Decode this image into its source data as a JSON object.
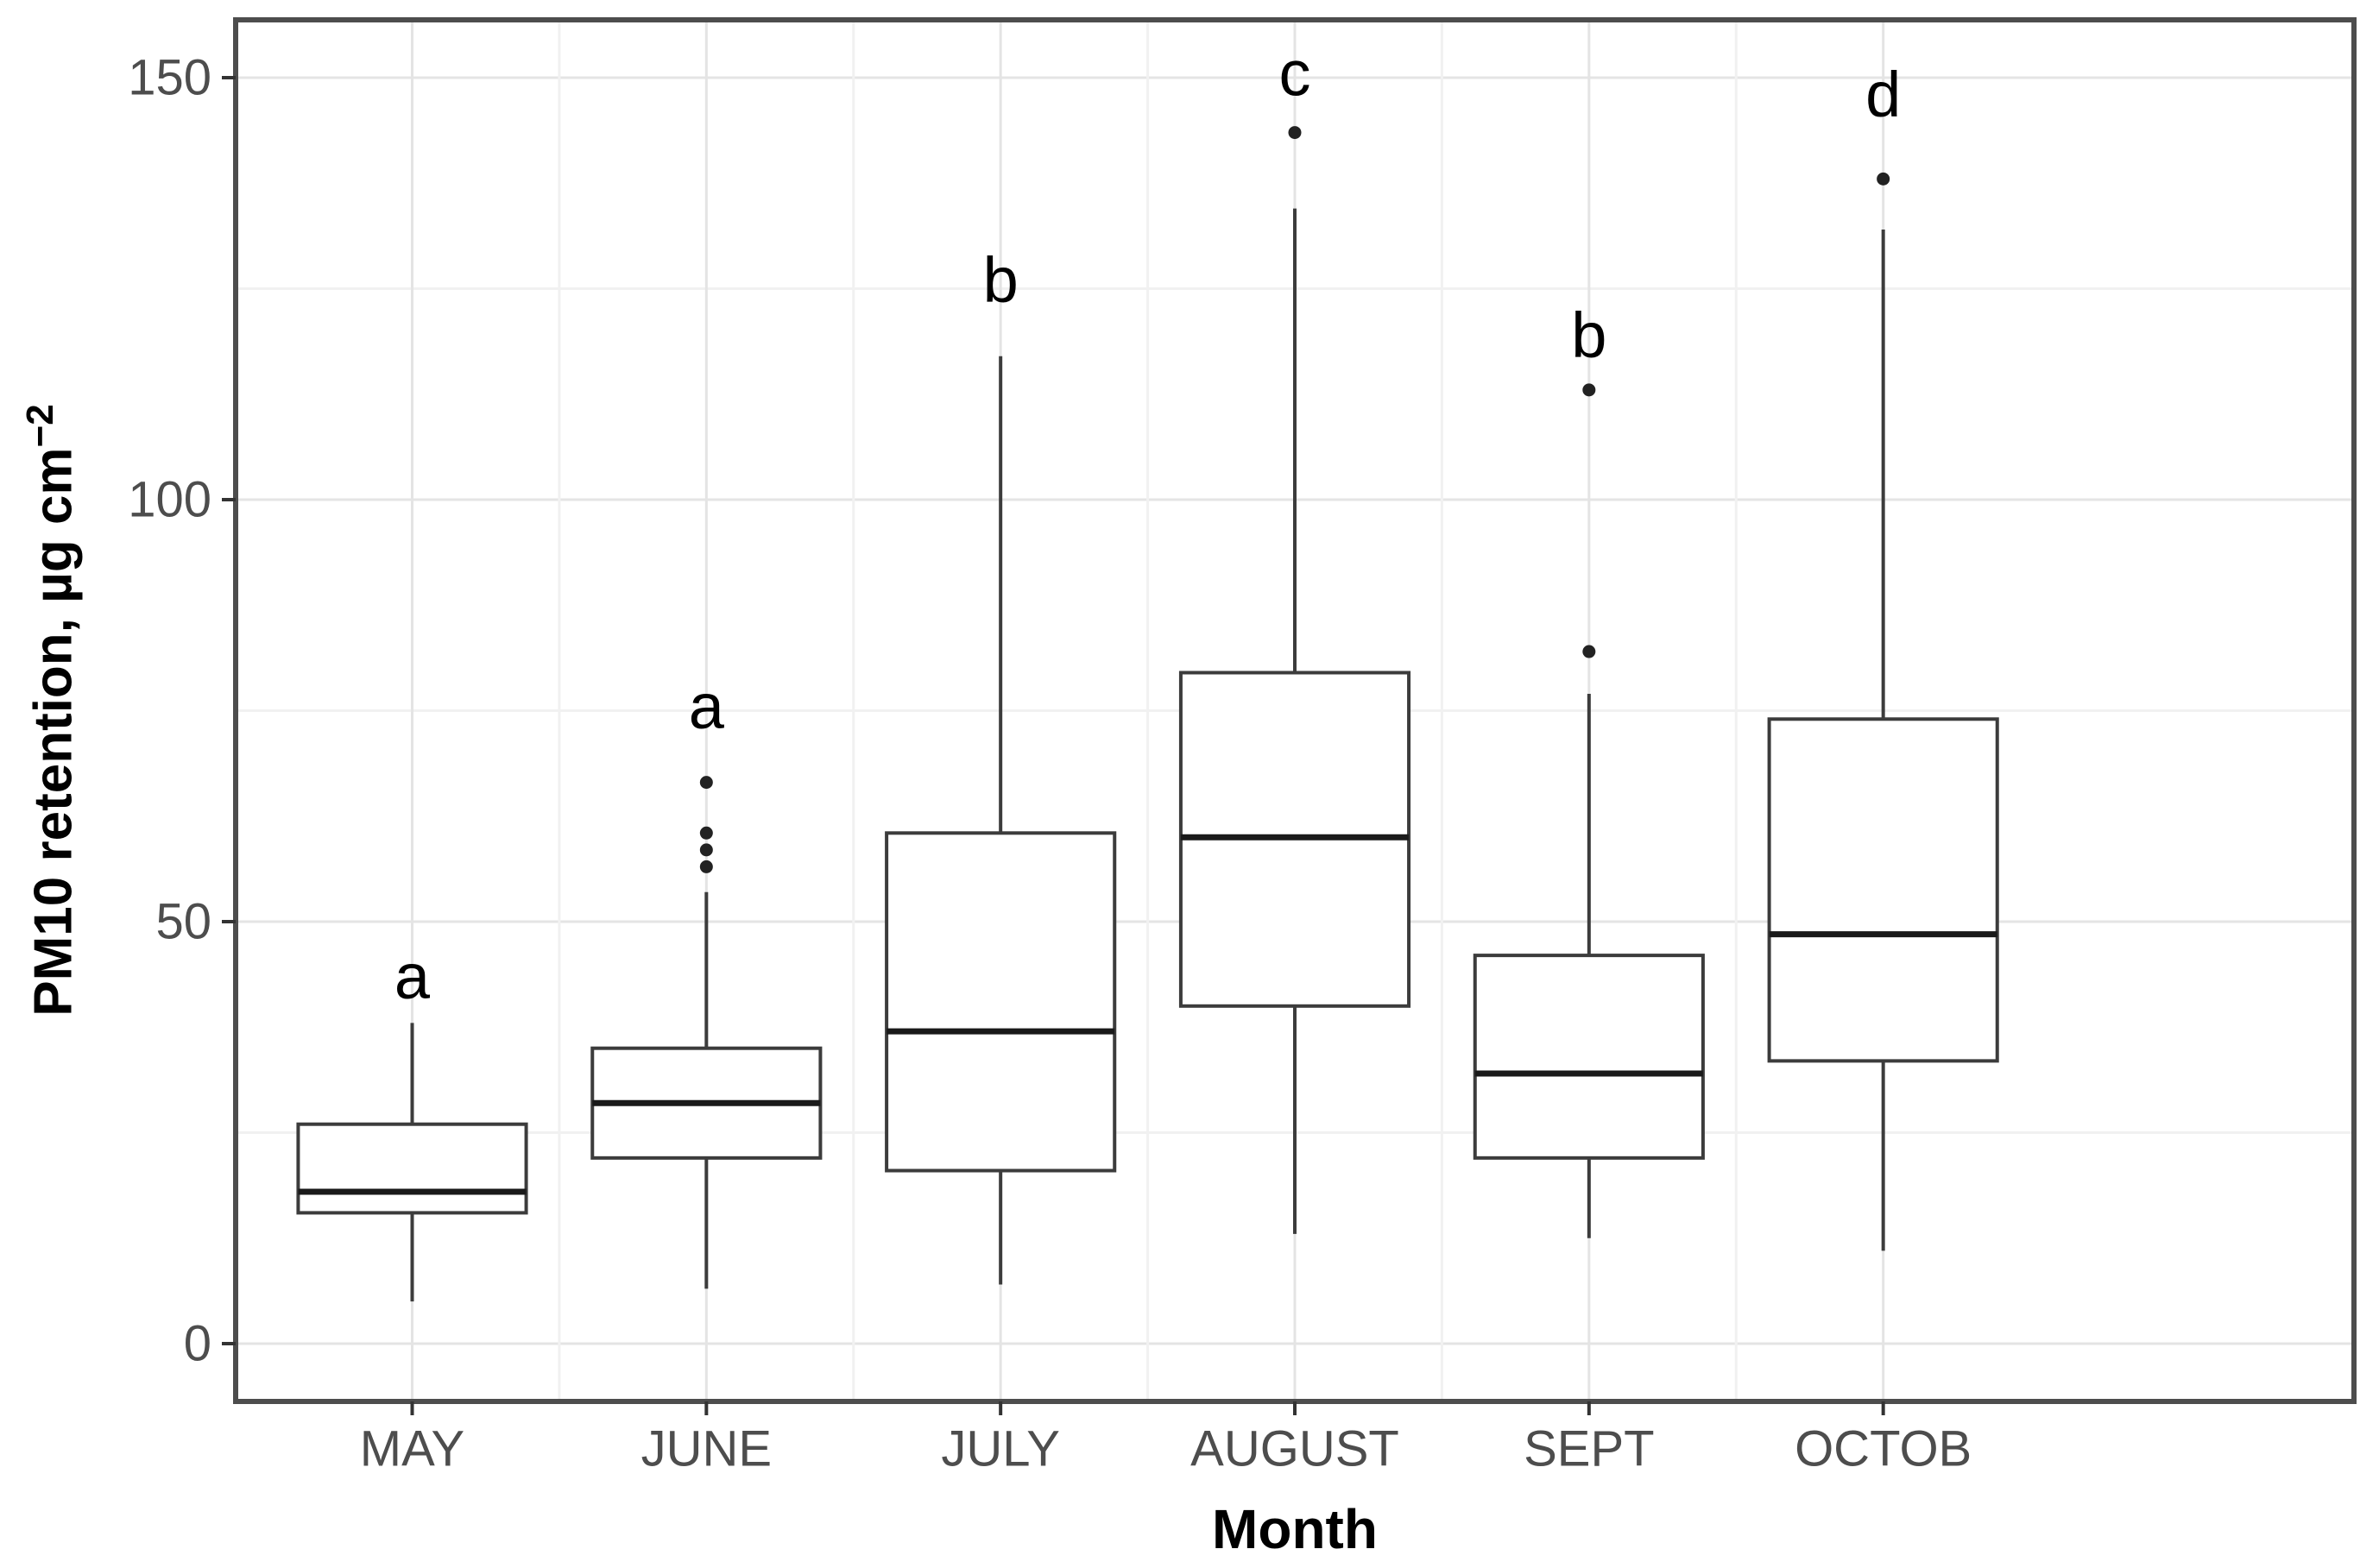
{
  "figure": {
    "kind": "boxplot-figure",
    "background": "#ffffff",
    "colors": {
      "panel_border": "#4d4d4d",
      "grid_major": "#e4e4e4",
      "grid_minor": "#f1f1f1",
      "box_line": "#3c3c3c",
      "median_line": "#1a1a1a",
      "whisker_line": "#3c3c3c",
      "outlier_dot": "#222222",
      "tick_mark": "#333333",
      "axis_text": "#4d4d4d",
      "title_text": "#000000",
      "letter_text": "#000000"
    }
  },
  "y_axis": {
    "title_main": "PM10 retention, µg cm",
    "title_superscript": "−2",
    "tick_labels": [
      "0",
      "50",
      "100",
      "150"
    ],
    "tick_values": [
      0,
      50,
      100,
      150
    ],
    "minor_gridlines": [
      25,
      75,
      125
    ],
    "range": [
      -7,
      157
    ]
  },
  "x_axis": {
    "title": "Month",
    "categories": [
      "MAY",
      "JUNE",
      "JULY",
      "AUGUST",
      "SEPT",
      "OCTOB"
    ]
  },
  "chart_data": {
    "type": "boxplot",
    "title": "",
    "xlabel": "Month",
    "ylabel": "PM10 retention, µg cm⁻²",
    "categories": [
      "MAY",
      "JUNE",
      "JULY",
      "AUGUST",
      "SEPT",
      "OCTOB"
    ],
    "ylim": [
      -7,
      157
    ],
    "y_ticks": [
      0,
      50,
      100,
      150
    ],
    "y_minor_gridlines": [
      25,
      75,
      125
    ],
    "grid": true,
    "legend": false,
    "boxes": [
      {
        "label": "MAY",
        "letter": "a",
        "letter_y": 43.5,
        "whisker_low": 5,
        "q1": 15.5,
        "median": 18,
        "q3": 26,
        "whisker_high": 38,
        "outliers": []
      },
      {
        "label": "JUNE",
        "letter": "a",
        "letter_y": 75.5,
        "whisker_low": 6.5,
        "q1": 22,
        "median": 28.5,
        "q3": 35,
        "whisker_high": 53.5,
        "outliers": [
          56.5,
          58.5,
          60.5,
          66.5
        ]
      },
      {
        "label": "JULY",
        "letter": "b",
        "letter_y": 126,
        "whisker_low": 7,
        "q1": 20.5,
        "median": 37,
        "q3": 60.5,
        "whisker_high": 117,
        "outliers": []
      },
      {
        "label": "AUGUST",
        "letter": "c",
        "letter_y": 150.5,
        "whisker_low": 13,
        "q1": 40,
        "median": 60,
        "q3": 79.5,
        "whisker_high": 134.5,
        "outliers": [
          143.5
        ]
      },
      {
        "label": "SEPT",
        "letter": "b",
        "letter_y": 119.5,
        "whisker_low": 12.5,
        "q1": 22,
        "median": 32,
        "q3": 46,
        "whisker_high": 77,
        "outliers": [
          82,
          113
        ]
      },
      {
        "label": "OCTOB",
        "letter": "d",
        "letter_y": 148,
        "whisker_low": 11,
        "q1": 33.5,
        "median": 48.5,
        "q3": 74,
        "whisker_high": 132,
        "outliers": [
          138
        ]
      }
    ]
  }
}
